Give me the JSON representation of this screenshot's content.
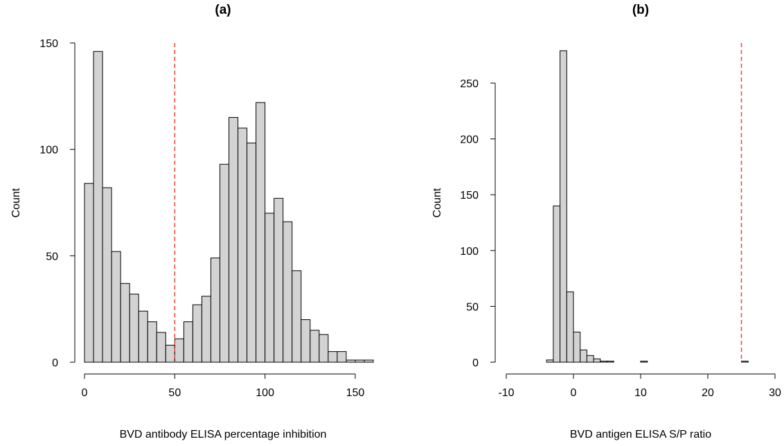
{
  "colors": {
    "bar_fill": "#d3d3d3",
    "bar_stroke": "#000000",
    "cutoff_line": "#ee4433",
    "axis": "#000000"
  },
  "chart_data": [
    {
      "type": "bar",
      "title": "(a)",
      "xlabel": "BVD antibody ELISA percentage inhibition",
      "ylabel": "Count",
      "bin_width": 5,
      "bin_starts": [
        0,
        5,
        10,
        15,
        20,
        25,
        30,
        35,
        40,
        45,
        50,
        55,
        60,
        65,
        70,
        75,
        80,
        85,
        90,
        95,
        100,
        105,
        110,
        115,
        120,
        125,
        130,
        135,
        140,
        145,
        150,
        155
      ],
      "values": [
        84,
        146,
        82,
        52,
        37,
        32,
        24,
        19,
        14,
        8,
        11,
        19,
        27,
        31,
        49,
        93,
        115,
        110,
        103,
        122,
        70,
        77,
        66,
        43,
        20,
        15,
        13,
        5,
        5,
        1,
        1,
        1
      ],
      "xlim": [
        0,
        155
      ],
      "ylim": [
        0,
        150
      ],
      "xticks": [
        0,
        50,
        100,
        150
      ],
      "yticks": [
        0,
        50,
        100,
        150
      ],
      "cutoff": 50,
      "grid": false
    },
    {
      "type": "bar",
      "title": "(b)",
      "xlabel": "BVD antigen ELISA S/P ratio",
      "ylabel": "Count",
      "bin_width": 1,
      "bin_starts": [
        -4,
        -3,
        -2,
        -1,
        0,
        1,
        2,
        3,
        4,
        5,
        6,
        7,
        8,
        9,
        10,
        11,
        12,
        13,
        14,
        15,
        16,
        17,
        18,
        19,
        20,
        21,
        22,
        23,
        24,
        25
      ],
      "values": [
        2,
        140,
        279,
        63,
        27,
        11,
        6,
        3,
        1,
        1,
        0,
        0,
        0,
        0,
        1,
        0,
        0,
        0,
        0,
        0,
        0,
        0,
        0,
        0,
        0,
        0,
        0,
        0,
        0,
        1
      ],
      "xlim": [
        -10,
        30
      ],
      "ylim": [
        0,
        250
      ],
      "xticks": [
        -10,
        0,
        10,
        20,
        30
      ],
      "yticks": [
        0,
        50,
        100,
        150,
        200,
        250
      ],
      "cutoff": 25,
      "grid": false
    }
  ]
}
